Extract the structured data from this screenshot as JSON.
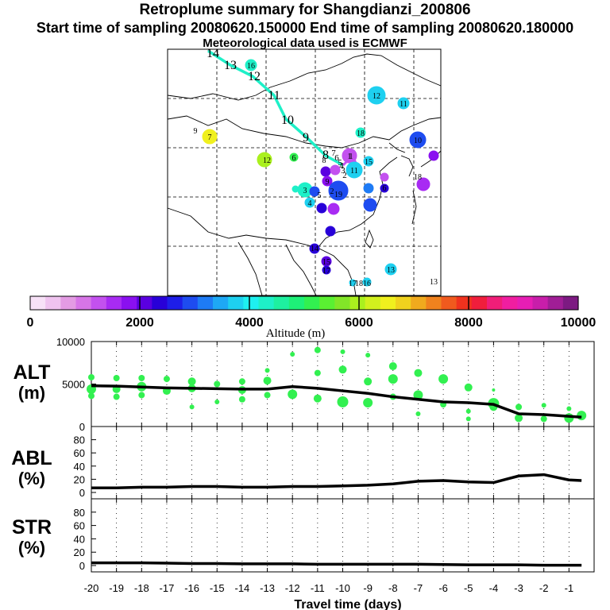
{
  "header": {
    "title": "Retroplume summary for Shangdianzi_200806",
    "sampling_line": "Start time of sampling 20080620.150000     End time of sampling 20080620.180000",
    "met_line": "Meteorological data used is ECMWF"
  },
  "map": {
    "trajectory_labels": [
      "14",
      "13",
      "12",
      "11",
      "10",
      "9",
      "8",
      "7",
      "6",
      "5",
      "4",
      "3",
      "2",
      "1"
    ],
    "bubble_labels": [
      "16",
      "12",
      "11",
      "9",
      "7",
      "18",
      "10",
      "12",
      "6",
      "1",
      "15",
      "11",
      "8",
      "9",
      "2",
      "3",
      "4",
      "5",
      "6",
      "19",
      "17",
      "18",
      "16",
      "13",
      "13",
      "14",
      "15",
      "17",
      "18"
    ]
  },
  "colorbar": {
    "tick_labels": [
      "0",
      "2000",
      "4000",
      "6000",
      "8000",
      "10000"
    ],
    "label": "Altitude (m)",
    "colors": [
      "#f7e1f7",
      "#efc3ef",
      "#e39be3",
      "#d775e7",
      "#c351ef",
      "#a82bf3",
      "#8a10f0",
      "#5a00e0",
      "#2800d8",
      "#1e1ee8",
      "#1e4cf0",
      "#1e7bf5",
      "#1ea8f5",
      "#1ed0f0",
      "#1ef0f0",
      "#1ef0c8",
      "#1ef0a0",
      "#1ef078",
      "#32f050",
      "#5af032",
      "#82e628",
      "#aaf01e",
      "#d2f01e",
      "#f0f01e",
      "#f0d21e",
      "#f0aa1e",
      "#f0821e",
      "#f05a1e",
      "#f0321e",
      "#f01e3c",
      "#f01e78",
      "#f01ea0",
      "#e61eb4",
      "#c81eaa",
      "#a01e96",
      "#7d1a82"
    ]
  },
  "panels": {
    "alt_label_line1": "ALT",
    "alt_label_line2": "(m)",
    "abl_label_line1": "ABL",
    "abl_label_line2": "(%)",
    "str_label_line1": "STR",
    "str_label_line2": "(%)",
    "xlabel": "Travel time (days)"
  },
  "chart_data": [
    {
      "type": "line",
      "name": "ALT",
      "ylabel": "ALT (m)",
      "ylim": [
        0,
        10000
      ],
      "yticks": [
        "0",
        "5000",
        "10000"
      ],
      "x": [
        -20,
        -19,
        -18,
        -17,
        -16,
        -15,
        -14,
        -13,
        -12,
        -11,
        -10,
        -9,
        -8,
        -7,
        -6,
        -5,
        -4,
        -3,
        -2,
        -1,
        -0.5
      ],
      "values": [
        4800,
        4750,
        4650,
        4550,
        4500,
        4450,
        4400,
        4400,
        4700,
        4500,
        4200,
        3900,
        3500,
        3200,
        2900,
        2800,
        2600,
        1500,
        1400,
        1200,
        1100
      ],
      "scatter": {
        "x": [
          -20,
          -20,
          -20,
          -19,
          -19,
          -19,
          -18,
          -18,
          -18,
          -17,
          -17,
          -16,
          -16,
          -16,
          -15,
          -15,
          -14,
          -14,
          -14,
          -13,
          -13,
          -13,
          -12,
          -12,
          -11,
          -11,
          -11,
          -10,
          -10,
          -10,
          -9,
          -9,
          -9,
          -8,
          -8,
          -8,
          -7,
          -7,
          -7,
          -6,
          -6,
          -5,
          -5,
          -5,
          -4,
          -4,
          -4,
          -3,
          -3,
          -2,
          -2,
          -1,
          -1,
          -0.5
        ],
        "y": [
          5800,
          4400,
          3600,
          5700,
          4400,
          3500,
          5700,
          4700,
          3700,
          5600,
          4200,
          5300,
          4500,
          2300,
          5000,
          2900,
          5300,
          4300,
          3200,
          6600,
          5400,
          3700,
          8500,
          3800,
          9000,
          6300,
          3300,
          8800,
          6700,
          2900,
          8400,
          5300,
          2800,
          7100,
          5600,
          3500,
          6300,
          3700,
          1500,
          5600,
          2600,
          4600,
          1800,
          900,
          4300,
          2700,
          2300,
          2300,
          1000,
          2500,
          900,
          2100,
          1000,
          1300
        ],
        "size": [
          4,
          6,
          4,
          4,
          5,
          4,
          4,
          6,
          4,
          4,
          5,
          5,
          5,
          3,
          4,
          3,
          4,
          5,
          4,
          3,
          5,
          4,
          3,
          6,
          4,
          4,
          5,
          3,
          5,
          7,
          3,
          5,
          6,
          5,
          6,
          4,
          5,
          6,
          3,
          6,
          4,
          5,
          3,
          3,
          2,
          7,
          5,
          4,
          5,
          3,
          4,
          3,
          6,
          6
        ]
      }
    },
    {
      "type": "line",
      "name": "ABL",
      "ylabel": "ABL (%)",
      "ylim": [
        0,
        100
      ],
      "yticks": [
        "0",
        "20",
        "40",
        "60",
        "80"
      ],
      "x": [
        -20,
        -19,
        -18,
        -17,
        -16,
        -15,
        -14,
        -13,
        -12,
        -11,
        -10,
        -9,
        -8,
        -7,
        -6,
        -5,
        -4,
        -3,
        -2,
        -1,
        -0.5
      ],
      "values": [
        7,
        7,
        8,
        8,
        9,
        9,
        8,
        8,
        9,
        9,
        10,
        11,
        13,
        17,
        18,
        16,
        15,
        25,
        27,
        19,
        18
      ]
    },
    {
      "type": "line",
      "name": "STR",
      "ylabel": "STR (%)",
      "ylim": [
        0,
        100
      ],
      "yticks": [
        "0",
        "20",
        "40",
        "60",
        "80"
      ],
      "x": [
        -20,
        -19,
        -18,
        -17,
        -16,
        -15,
        -14,
        -13,
        -12,
        -11,
        -10,
        -9,
        -8,
        -7,
        -6,
        -5,
        -4,
        -3,
        -2,
        -1,
        -0.5
      ],
      "values": [
        4,
        4,
        4,
        3.5,
        3,
        3,
        2.5,
        2.5,
        2.5,
        2,
        2,
        2,
        2,
        2,
        1.5,
        1,
        1,
        1,
        0.5,
        0.5,
        0.5
      ]
    }
  ],
  "xaxis": {
    "ticks": [
      "-20",
      "-19",
      "-18",
      "-17",
      "-16",
      "-15",
      "-14",
      "-13",
      "-12",
      "-11",
      "-10",
      "-9",
      "-8",
      "-7",
      "-6",
      "-5",
      "-4",
      "-3",
      "-2",
      "-1"
    ],
    "xlim": [
      -20,
      0
    ]
  }
}
